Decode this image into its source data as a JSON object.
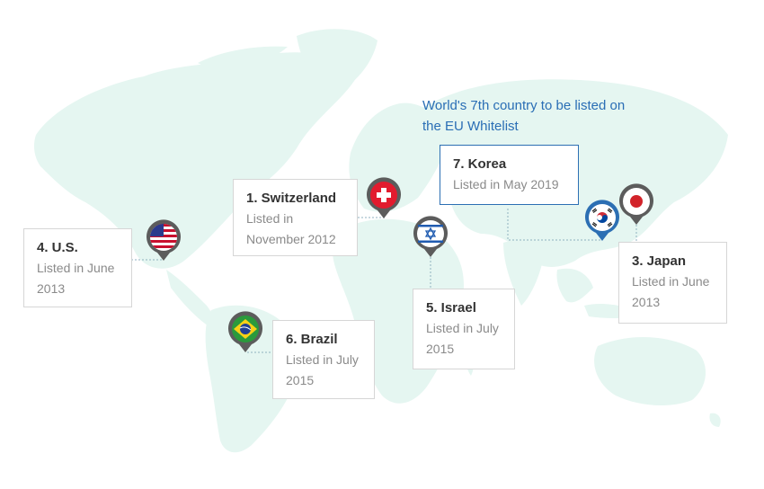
{
  "headline": "World's 7th country to be listed on the EU Whitelist",
  "colors": {
    "map_land": "#e5f6f1",
    "card_border": "#d6d6d6",
    "highlight": "#2c6fb3",
    "pin_body": "#5c5c5c",
    "text_dark": "#333333",
    "text_muted": "#8a8a8a"
  },
  "countries": [
    {
      "key": "switzerland",
      "name": "1. Switzerland",
      "listed": "Listed in November 2012",
      "flag": "switzerland-flag"
    },
    {
      "key": "us",
      "name": "4. U.S.",
      "listed": "Listed in June 2013",
      "flag": "us-flag"
    },
    {
      "key": "brazil",
      "name": "6. Brazil",
      "listed": "Listed in July 2015",
      "flag": "brazil-flag"
    },
    {
      "key": "israel",
      "name": "5. Israel",
      "listed": "Listed in July 2015",
      "flag": "israel-flag"
    },
    {
      "key": "korea",
      "name": "7. Korea",
      "listed": "Listed in May 2019",
      "flag": "korea-flag"
    },
    {
      "key": "japan",
      "name": "3. Japan",
      "listed": "Listed in June 2013",
      "flag": "japan-flag"
    }
  ]
}
